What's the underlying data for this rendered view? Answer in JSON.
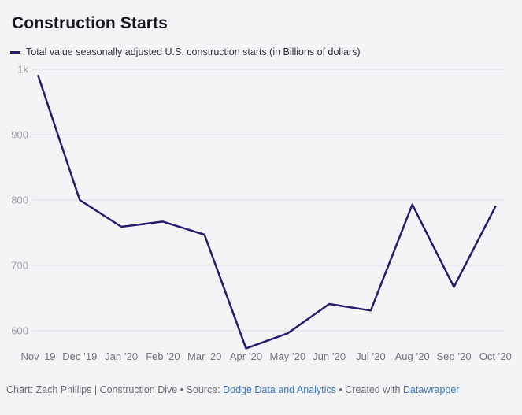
{
  "header": {
    "title": "Construction Starts"
  },
  "legend": {
    "label": "Total value seasonally adjusted U.S. construction starts (in Billions of dollars)",
    "swatch_color": "#241d6e"
  },
  "chart_data": {
    "type": "line",
    "title": "Construction Starts",
    "categories": [
      "Nov ’19",
      "Dec ’19",
      "Jan ’20",
      "Feb ’20",
      "Mar ’20",
      "Apr ’20",
      "May ’20",
      "Jun ’20",
      "Jul ’20",
      "Aug ’20",
      "Sep ’20",
      "Oct ’20"
    ],
    "series": [
      {
        "name": "Total value seasonally adjusted U.S. construction starts (in Billions of dollars)",
        "values": [
          990,
          800,
          759,
          767,
          747,
          573,
          596,
          641,
          631,
          793,
          667,
          790
        ]
      }
    ],
    "y_ticks": [
      {
        "label": "600",
        "value": 600
      },
      {
        "label": "700",
        "value": 700
      },
      {
        "label": "800",
        "value": 800
      },
      {
        "label": "900",
        "value": 900
      },
      {
        "label": "1k",
        "value": 1000
      }
    ],
    "ylim": [
      569,
      1000
    ],
    "xlabel": "",
    "ylabel": "",
    "grid": true,
    "legend_position": "top",
    "line_color": "#241d6e"
  },
  "colors": {
    "background": "#f4f4f6",
    "line": "#241d6e",
    "grid": "#dddde1",
    "y_axis_text": "#a1a2a6",
    "x_axis_text": "#737478",
    "footer_text": "#6c6d71",
    "link": "#3a7ac2"
  },
  "footer": {
    "byline": "Chart: Zach Phillips | Construction Dive • Source: ",
    "source_link": "Dodge Data and Analytics",
    "created_with": " • Created with ",
    "tool_link": "Datawrapper"
  }
}
